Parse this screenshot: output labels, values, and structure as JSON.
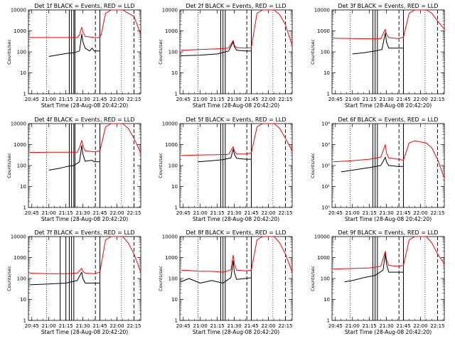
{
  "figure": {
    "colors": {
      "events": "#000000",
      "lld": "#ff0000",
      "background": "#ffffff"
    }
  },
  "chart_data": [
    {
      "type": "line",
      "title": "Det 1f BLACK = Events, RED = LLD",
      "xlabel": "Start Time (28-Aug-08 20:42:20)",
      "ylabel": "Counts/sec",
      "x_ticks": [
        "20:45",
        "21:00",
        "21:15",
        "21:30",
        "21:45",
        "22:00",
        "22:15"
      ],
      "y_ticks": [
        "1",
        "10",
        "100",
        "1000",
        "10000"
      ],
      "y_scale": "log",
      "xlim": [
        "20:42",
        "22:21"
      ],
      "ylim": [
        1,
        10000
      ],
      "solid_vlines": [
        "21:18",
        "21:20",
        "21:22",
        "21:23",
        "21:45"
      ],
      "dashed_vlines": [
        "21:41",
        "21:45",
        "22:15"
      ],
      "dotted_vlines": [
        "20:58",
        "22:04"
      ],
      "series": [
        {
          "color": "#000000",
          "x": [
            "21:00",
            "21:10",
            "21:16",
            "21:22",
            "21:27",
            "21:29",
            "21:30",
            "21:32",
            "21:36",
            "21:38",
            "21:40",
            "21:42",
            "21:44",
            "21:45"
          ],
          "values": [
            60,
            75,
            85,
            90,
            110,
            700,
            300,
            150,
            110,
            150,
            110,
            110,
            110,
            110
          ]
        },
        {
          "color": "#ff0000",
          "x": [
            "20:43",
            "21:00",
            "21:15",
            "21:25",
            "21:27",
            "21:29",
            "21:30",
            "21:32",
            "21:40",
            "21:44",
            "21:46",
            "21:50",
            "21:55",
            "22:00",
            "22:05",
            "22:10",
            "22:15",
            "22:21"
          ],
          "values": [
            480,
            480,
            480,
            480,
            650,
            1500,
            900,
            550,
            480,
            480,
            600,
            7000,
            10000,
            10000,
            10000,
            7000,
            5000,
            700
          ]
        }
      ]
    },
    {
      "type": "line",
      "title": "Det 2f BLACK = Events, RED = LLD",
      "xlabel": "Start Time (28-Aug-08 20:42:20)",
      "ylabel": "Counts/sec",
      "x_ticks": [
        "20:45",
        "21:00",
        "21:15",
        "21:30",
        "21:45",
        "22:00",
        "22:15"
      ],
      "y_ticks": [
        "1",
        "10",
        "100",
        "1000",
        "10000"
      ],
      "y_scale": "log",
      "xlim": [
        "20:42",
        "22:21"
      ],
      "ylim": [
        1,
        10000
      ],
      "solid_vlines": [
        "21:18",
        "21:20",
        "21:22",
        "21:45"
      ],
      "dashed_vlines": [
        "21:41",
        "21:45",
        "22:15"
      ],
      "dotted_vlines": [
        "20:58",
        "22:04"
      ],
      "series": [
        {
          "color": "#000000",
          "x": [
            "20:43",
            "21:00",
            "21:15",
            "21:25",
            "21:29",
            "21:30",
            "21:32",
            "21:40",
            "21:45"
          ],
          "values": [
            65,
            70,
            80,
            110,
            300,
            180,
            120,
            110,
            110
          ]
        },
        {
          "color": "#ff0000",
          "x": [
            "20:43",
            "21:00",
            "21:15",
            "21:25",
            "21:29",
            "21:30",
            "21:32",
            "21:40",
            "21:45",
            "21:50",
            "21:55",
            "22:05",
            "22:10",
            "22:15",
            "22:21"
          ],
          "values": [
            120,
            130,
            140,
            150,
            350,
            200,
            160,
            150,
            160,
            7000,
            10000,
            10000,
            6000,
            2000,
            200
          ]
        }
      ]
    },
    {
      "type": "line",
      "title": "Det 3f BLACK = Events, RED = LLD",
      "xlabel": "Start Time (28-Aug-08 20:42:20)",
      "ylabel": "Counts/sec",
      "x_ticks": [
        "20:45",
        "21:00",
        "21:15",
        "21:30",
        "21:45",
        "22:00",
        "22:15"
      ],
      "y_ticks": [
        "1",
        "10",
        "100",
        "1000",
        "10000"
      ],
      "y_scale": "log",
      "xlim": [
        "20:42",
        "22:21"
      ],
      "ylim": [
        1,
        10000
      ],
      "solid_vlines": [
        "21:18",
        "21:20",
        "21:22",
        "21:45"
      ],
      "dashed_vlines": [
        "21:41",
        "21:45",
        "22:15"
      ],
      "dotted_vlines": [
        "20:58",
        "22:04"
      ],
      "series": [
        {
          "color": "#000000",
          "x": [
            "21:00",
            "21:10",
            "21:20",
            "21:26",
            "21:29",
            "21:30",
            "21:32",
            "21:40",
            "21:45"
          ],
          "values": [
            80,
            90,
            110,
            130,
            800,
            300,
            150,
            150,
            150
          ]
        },
        {
          "color": "#ff0000",
          "x": [
            "20:43",
            "21:00",
            "21:15",
            "21:25",
            "21:29",
            "21:30",
            "21:32",
            "21:40",
            "21:45",
            "21:50",
            "21:55",
            "22:05",
            "22:10",
            "22:15",
            "22:21"
          ],
          "values": [
            450,
            430,
            420,
            420,
            1200,
            700,
            480,
            430,
            500,
            7000,
            10000,
            10000,
            7000,
            3000,
            1200
          ]
        }
      ]
    },
    {
      "type": "line",
      "title": "Det 4f BLACK = Events, RED = LLD",
      "xlabel": "Start Time (28-Aug-08 20:42:20)",
      "ylabel": "Counts/sec",
      "x_ticks": [
        "20:45",
        "21:00",
        "21:15",
        "21:30",
        "21:45",
        "22:00",
        "22:15"
      ],
      "y_ticks": [
        "1",
        "10",
        "100",
        "1000",
        "10000"
      ],
      "y_scale": "log",
      "xlim": [
        "20:42",
        "22:21"
      ],
      "ylim": [
        1,
        10000
      ],
      "solid_vlines": [
        "21:18",
        "21:20",
        "21:22",
        "21:23",
        "21:45"
      ],
      "dashed_vlines": [
        "21:41",
        "21:45",
        "22:15"
      ],
      "dotted_vlines": [
        "20:58",
        "22:04"
      ],
      "series": [
        {
          "color": "#000000",
          "x": [
            "21:00",
            "21:10",
            "21:16",
            "21:22",
            "21:27",
            "21:29",
            "21:30",
            "21:32",
            "21:38",
            "21:40",
            "21:45"
          ],
          "values": [
            60,
            75,
            90,
            100,
            150,
            900,
            350,
            160,
            180,
            150,
            150
          ]
        },
        {
          "color": "#ff0000",
          "x": [
            "20:43",
            "21:00",
            "21:15",
            "21:25",
            "21:27",
            "21:29",
            "21:30",
            "21:32",
            "21:40",
            "21:45",
            "21:50",
            "21:55",
            "22:05",
            "22:10",
            "22:15",
            "22:21"
          ],
          "values": [
            420,
            430,
            430,
            430,
            700,
            1600,
            900,
            500,
            450,
            500,
            7000,
            10000,
            10000,
            6000,
            2000,
            400
          ]
        }
      ]
    },
    {
      "type": "line",
      "title": "Det 5f BLACK = Events, RED = LLD",
      "xlabel": "Start Time (28-Aug-08 20:42:20)",
      "ylabel": "Counts/sec",
      "x_ticks": [
        "20:45",
        "21:00",
        "21:15",
        "21:30",
        "21:45",
        "22:00",
        "22:15"
      ],
      "y_ticks": [
        "1",
        "10",
        "100",
        "1000",
        "10000"
      ],
      "y_scale": "log",
      "xlim": [
        "20:42",
        "22:21"
      ],
      "ylim": [
        1,
        10000
      ],
      "solid_vlines": [
        "21:18",
        "21:20",
        "21:22",
        "21:45"
      ],
      "dashed_vlines": [
        "21:41",
        "21:45",
        "22:15"
      ],
      "dotted_vlines": [
        "20:58",
        "22:04"
      ],
      "series": [
        {
          "color": "#000000",
          "x": [
            "20:58",
            "21:10",
            "21:20",
            "21:27",
            "21:29",
            "21:30",
            "21:32",
            "21:40",
            "21:45"
          ],
          "values": [
            150,
            170,
            190,
            230,
            600,
            350,
            220,
            200,
            200
          ]
        },
        {
          "color": "#ff0000",
          "x": [
            "20:43",
            "21:00",
            "21:15",
            "21:25",
            "21:29",
            "21:30",
            "21:32",
            "21:40",
            "21:45",
            "21:50",
            "21:55",
            "22:05",
            "22:10",
            "22:15",
            "22:21"
          ],
          "values": [
            300,
            320,
            330,
            340,
            800,
            500,
            360,
            350,
            400,
            7000,
            10000,
            10000,
            6000,
            2000,
            500
          ]
        }
      ]
    },
    {
      "type": "line",
      "title": "Det 6f BLACK = Events, RED = LLD",
      "xlabel": "Start Time (28-Aug-08 20:42:20)",
      "ylabel": "Counts/sec",
      "x_ticks": [
        "20:45",
        "21:00",
        "21:15",
        "21:30",
        "21:45",
        "22:00",
        "22:15"
      ],
      "y_ticks": [
        "10⁰",
        "10¹",
        "10²",
        "10³",
        "10⁴"
      ],
      "y_scale": "log",
      "xlim": [
        "20:42",
        "22:21"
      ],
      "ylim": [
        1,
        10000
      ],
      "solid_vlines": [
        "21:18",
        "21:20",
        "21:22",
        "21:45"
      ],
      "dashed_vlines": [
        "21:41",
        "21:45",
        "22:15"
      ],
      "dotted_vlines": [
        "20:58",
        "22:04"
      ],
      "series": [
        {
          "color": "#000000",
          "x": [
            "20:50",
            "21:00",
            "21:15",
            "21:25",
            "21:29",
            "21:30",
            "21:32",
            "21:40",
            "21:45"
          ],
          "values": [
            50,
            60,
            80,
            100,
            250,
            150,
            100,
            90,
            90
          ]
        },
        {
          "color": "#ff0000",
          "x": [
            "20:43",
            "21:00",
            "21:15",
            "21:25",
            "21:29",
            "21:30",
            "21:32",
            "21:40",
            "21:45",
            "21:50",
            "21:55",
            "22:05",
            "22:10",
            "22:15",
            "22:21"
          ],
          "values": [
            150,
            170,
            200,
            250,
            1000,
            400,
            230,
            200,
            180,
            1200,
            1500,
            1200,
            700,
            200,
            25
          ]
        }
      ]
    },
    {
      "type": "line",
      "title": "Det 7f BLACK = Events, RED = LLD",
      "xlabel": "Start Time (28-Aug-08 20:42:20)",
      "ylabel": "Counts/sec",
      "x_ticks": [
        "20:45",
        "21:00",
        "21:15",
        "21:30",
        "21:45",
        "22:00",
        "22:15"
      ],
      "y_ticks": [
        "1",
        "10",
        "100",
        "1000",
        "10000"
      ],
      "y_scale": "log",
      "xlim": [
        "20:42",
        "22:21"
      ],
      "ylim": [
        1,
        10000
      ],
      "solid_vlines": [
        "21:10",
        "21:15",
        "21:18",
        "21:20",
        "21:22",
        "21:45"
      ],
      "dashed_vlines": [
        "21:41",
        "21:45",
        "22:15"
      ],
      "dotted_vlines": [
        "20:58",
        "22:04"
      ],
      "series": [
        {
          "color": "#000000",
          "x": [
            "20:43",
            "21:00",
            "21:15",
            "21:25",
            "21:29",
            "21:30",
            "21:32",
            "21:40",
            "21:45"
          ],
          "values": [
            50,
            55,
            60,
            80,
            200,
            100,
            60,
            60,
            60
          ]
        },
        {
          "color": "#ff0000",
          "x": [
            "20:43",
            "21:00",
            "21:15",
            "21:25",
            "21:29",
            "21:30",
            "21:32",
            "21:40",
            "21:45",
            "21:50",
            "21:55",
            "22:05",
            "22:10",
            "22:15",
            "22:21"
          ],
          "values": [
            180,
            170,
            170,
            180,
            300,
            220,
            180,
            170,
            200,
            7000,
            10000,
            10000,
            5000,
            1500,
            200
          ]
        }
      ]
    },
    {
      "type": "line",
      "title": "Det 8f BLACK = Events, RED = LLD",
      "xlabel": "Start Time (28-Aug-08 20:42:20)",
      "ylabel": "Counts/sec",
      "x_ticks": [
        "20:45",
        "21:00",
        "21:15",
        "21:30",
        "21:45",
        "22:00",
        "22:15"
      ],
      "y_ticks": [
        "1",
        "10",
        "100",
        "1000",
        "10000"
      ],
      "y_scale": "log",
      "xlim": [
        "20:42",
        "22:21"
      ],
      "ylim": [
        1,
        10000
      ],
      "solid_vlines": [
        "21:18",
        "21:20",
        "21:22",
        "21:45"
      ],
      "dashed_vlines": [
        "21:41",
        "21:45",
        "22:15"
      ],
      "dotted_vlines": [
        "20:58",
        "22:04"
      ],
      "series": [
        {
          "color": "#000000",
          "x": [
            "20:43",
            "20:50",
            "21:00",
            "21:10",
            "21:20",
            "21:27",
            "21:29",
            "21:30",
            "21:32",
            "21:40",
            "21:45"
          ],
          "values": [
            70,
            100,
            60,
            80,
            60,
            110,
            700,
            200,
            90,
            100,
            110
          ]
        },
        {
          "color": "#ff0000",
          "x": [
            "20:43",
            "20:50",
            "21:00",
            "21:10",
            "21:20",
            "21:27",
            "21:29",
            "21:30",
            "21:32",
            "21:40",
            "21:45",
            "21:50",
            "21:55",
            "22:05",
            "22:10",
            "22:15",
            "22:21"
          ],
          "values": [
            250,
            240,
            220,
            220,
            200,
            260,
            1300,
            500,
            250,
            230,
            250,
            7000,
            10000,
            10000,
            5000,
            1500,
            200
          ]
        }
      ]
    },
    {
      "type": "line",
      "title": "Det 9f BLACK = Events, RED = LLD",
      "xlabel": "Start Time (28-Aug-08 20:42:20)",
      "ylabel": "Counts/sec",
      "x_ticks": [
        "20:45",
        "21:00",
        "21:15",
        "21:30",
        "21:45",
        "22:00",
        "22:15"
      ],
      "y_ticks": [
        "1",
        "10",
        "100",
        "1000",
        "10000"
      ],
      "y_scale": "log",
      "xlim": [
        "20:42",
        "22:21"
      ],
      "ylim": [
        1,
        10000
      ],
      "solid_vlines": [
        "21:18",
        "21:20",
        "21:22",
        "21:45"
      ],
      "dashed_vlines": [
        "21:41",
        "21:45",
        "22:15"
      ],
      "dotted_vlines": [
        "20:58",
        "22:04"
      ],
      "series": [
        {
          "color": "#000000",
          "x": [
            "20:53",
            "21:00",
            "21:10",
            "21:20",
            "21:27",
            "21:29",
            "21:30",
            "21:32",
            "21:40",
            "21:45"
          ],
          "values": [
            70,
            80,
            110,
            140,
            250,
            1500,
            500,
            200,
            200,
            200
          ]
        },
        {
          "color": "#ff0000",
          "x": [
            "20:43",
            "21:00",
            "21:15",
            "21:25",
            "21:29",
            "21:30",
            "21:32",
            "21:40",
            "21:45",
            "21:50",
            "21:55",
            "22:05",
            "22:10",
            "22:15",
            "22:21"
          ],
          "values": [
            280,
            300,
            320,
            380,
            2000,
            800,
            420,
            380,
            420,
            7000,
            10000,
            10000,
            5000,
            1500,
            500
          ]
        }
      ]
    }
  ]
}
